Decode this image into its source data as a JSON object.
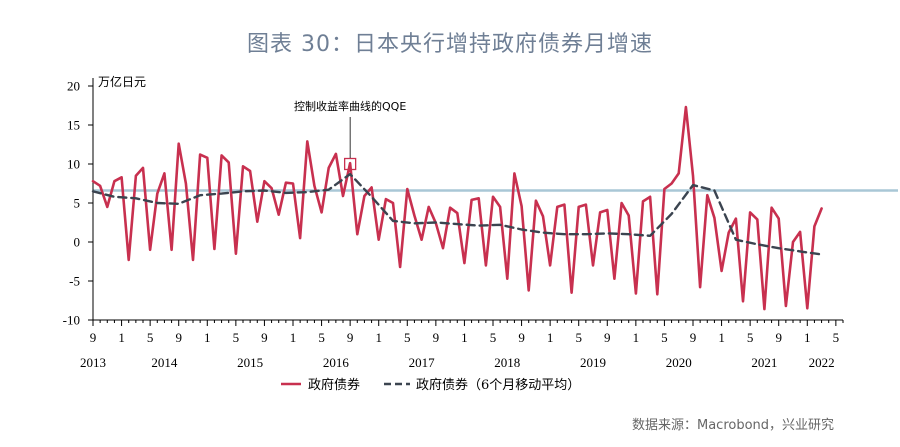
{
  "title": "图表 30：日本央行增持政府债券月增速",
  "source": "数据来源：Macrobond，兴业研究",
  "chart_data": {
    "type": "line",
    "unit_label": "万亿日元",
    "ylim": [
      -10,
      20
    ],
    "y_ticks": [
      20,
      15,
      10,
      5,
      0,
      -5,
      -10
    ],
    "x_start": "2013-09",
    "x_end": "2022-06",
    "month_tick_labels": [
      "9",
      "1",
      "5",
      "9",
      "1",
      "5",
      "9",
      "1",
      "5",
      "9",
      "1",
      "5",
      "9",
      "1",
      "5",
      "9",
      "1",
      "5",
      "9",
      "1",
      "5",
      "9",
      "1",
      "5",
      "9",
      "1",
      "5"
    ],
    "year_labels": [
      "2013",
      "2014",
      "2015",
      "2016",
      "2017",
      "2018",
      "2019",
      "2020",
      "2021",
      "2022"
    ],
    "reference_line": {
      "value": 6.6,
      "color": "#a9c7d6"
    },
    "annotation": {
      "text": "控制收益率曲线的QQE",
      "x": "2016-09",
      "y": 10
    },
    "series": [
      {
        "name": "政府债券",
        "color": "#c8304f",
        "style": "solid",
        "x": [
          "2013-09",
          "2013-10",
          "2013-11",
          "2013-12",
          "2014-01",
          "2014-02",
          "2014-03",
          "2014-04",
          "2014-05",
          "2014-06",
          "2014-07",
          "2014-08",
          "2014-09",
          "2014-10",
          "2014-11",
          "2014-12",
          "2015-01",
          "2015-02",
          "2015-03",
          "2015-04",
          "2015-05",
          "2015-06",
          "2015-07",
          "2015-08",
          "2015-09",
          "2015-10",
          "2015-11",
          "2015-12",
          "2016-01",
          "2016-02",
          "2016-03",
          "2016-04",
          "2016-05",
          "2016-06",
          "2016-07",
          "2016-08",
          "2016-09",
          "2016-10",
          "2016-11",
          "2016-12",
          "2017-01",
          "2017-02",
          "2017-03",
          "2017-04",
          "2017-05",
          "2017-06",
          "2017-07",
          "2017-08",
          "2017-09",
          "2017-10",
          "2017-11",
          "2017-12",
          "2018-01",
          "2018-02",
          "2018-03",
          "2018-04",
          "2018-05",
          "2018-06",
          "2018-07",
          "2018-08",
          "2018-09",
          "2018-10",
          "2018-11",
          "2018-12",
          "2019-01",
          "2019-02",
          "2019-03",
          "2019-04",
          "2019-05",
          "2019-06",
          "2019-07",
          "2019-08",
          "2019-09",
          "2019-10",
          "2019-11",
          "2019-12",
          "2020-01",
          "2020-02",
          "2020-03",
          "2020-04",
          "2020-05",
          "2020-06",
          "2020-07",
          "2020-08",
          "2020-09",
          "2020-10",
          "2020-11",
          "2020-12",
          "2021-01",
          "2021-02",
          "2021-03",
          "2021-04",
          "2021-05",
          "2021-06",
          "2021-07",
          "2021-08",
          "2021-09",
          "2021-10",
          "2021-11",
          "2021-12",
          "2022-01",
          "2022-02",
          "2022-03"
        ],
        "values": [
          7.8,
          7.2,
          4.5,
          7.8,
          8.3,
          -2.3,
          8.5,
          9.5,
          -1.0,
          6.2,
          8.8,
          -1.0,
          12.6,
          7.5,
          -2.3,
          11.2,
          10.8,
          -0.9,
          11.1,
          10.2,
          -1.5,
          9.7,
          9.1,
          2.6,
          7.8,
          6.9,
          3.5,
          7.6,
          7.5,
          0.5,
          12.9,
          7.2,
          3.8,
          9.5,
          11.3,
          5.9,
          10.1,
          1.0,
          5.9,
          7.0,
          0.3,
          5.5,
          5.0,
          -3.2,
          6.8,
          3.4,
          0.3,
          4.5,
          2.4,
          -0.8,
          4.4,
          3.7,
          -2.7,
          5.4,
          5.6,
          -3.0,
          5.8,
          4.5,
          -4.7,
          8.8,
          4.6,
          -6.2,
          5.3,
          3.3,
          -3.0,
          4.5,
          4.8,
          -6.5,
          4.5,
          4.8,
          -3.0,
          3.8,
          4.1,
          -4.7,
          5.0,
          3.4,
          -6.6,
          5.2,
          5.8,
          -6.7,
          6.8,
          7.5,
          8.8,
          17.3,
          8.5,
          -5.8,
          6.0,
          3.1,
          -3.7,
          1.2,
          3.0,
          -7.6,
          3.8,
          2.9,
          -8.6,
          4.4,
          3.0,
          -8.2,
          0.0,
          1.3,
          -8.5,
          2.0,
          4.3
        ]
      },
      {
        "name": "政府债券（6个月移动平均）",
        "color": "#3b4450",
        "style": "dashed",
        "x": [
          "2013-09",
          "2013-12",
          "2014-03",
          "2014-06",
          "2014-09",
          "2014-12",
          "2015-03",
          "2015-06",
          "2015-09",
          "2015-12",
          "2016-03",
          "2016-06",
          "2016-09",
          "2016-12",
          "2017-03",
          "2017-06",
          "2017-09",
          "2017-12",
          "2018-03",
          "2018-06",
          "2018-09",
          "2018-12",
          "2019-03",
          "2019-06",
          "2019-09",
          "2019-12",
          "2020-03",
          "2020-06",
          "2020-09",
          "2020-12",
          "2021-03",
          "2021-06",
          "2021-09",
          "2021-12",
          "2022-03"
        ],
        "values": [
          6.5,
          5.8,
          5.6,
          5.0,
          4.9,
          6.0,
          6.2,
          6.5,
          6.6,
          6.3,
          6.4,
          6.7,
          8.7,
          5.8,
          2.7,
          2.4,
          2.5,
          2.3,
          2.1,
          2.2,
          1.6,
          1.2,
          1.0,
          1.0,
          1.1,
          1.0,
          0.8,
          3.6,
          7.3,
          6.6,
          0.3,
          -0.3,
          -0.8,
          -1.2,
          -1.6
        ]
      }
    ]
  }
}
